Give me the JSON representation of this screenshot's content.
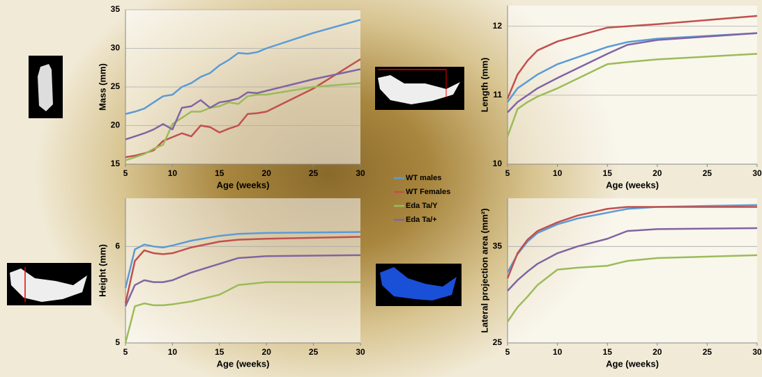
{
  "chart_data": [
    {
      "type": "line",
      "ylabel": "Mass (mm)",
      "xlabel": "Age (weeks)",
      "x": [
        5,
        6,
        7,
        8,
        9,
        10,
        11,
        12,
        13,
        14,
        15,
        16,
        17,
        18,
        19,
        20,
        25,
        30
      ],
      "xlim": [
        5,
        30
      ],
      "xticks": [
        5,
        10,
        15,
        20,
        25,
        30
      ],
      "ylim": [
        15,
        35
      ],
      "yticks": [
        15,
        20,
        25,
        30,
        35
      ],
      "grid": true,
      "series": [
        {
          "name": "WT males",
          "color": "#5b9bd5",
          "values": [
            21.5,
            21.8,
            22.2,
            23,
            23.8,
            24,
            25,
            25.5,
            26.3,
            26.8,
            27.8,
            28.5,
            29.4,
            29.3,
            29.5,
            30,
            32,
            33.7
          ]
        },
        {
          "name": "WT Females",
          "color": "#c0504d",
          "values": [
            15.9,
            16.1,
            16.4,
            16.8,
            18,
            18.5,
            19,
            18.6,
            20,
            19.8,
            19.1,
            19.6,
            20,
            21.5,
            21.6,
            21.8,
            24.8,
            28.6
          ]
        },
        {
          "name": "Eda Ta/Y",
          "color": "#9bbb59",
          "values": [
            15.5,
            15.9,
            16.3,
            17,
            17.5,
            20.2,
            21,
            21.8,
            21.8,
            22.3,
            22.5,
            23,
            22.8,
            23.8,
            24,
            24,
            25,
            25.5
          ]
        },
        {
          "name": "Eda Ta/+",
          "color": "#8064a2",
          "values": [
            18.2,
            18.6,
            19,
            19.5,
            20.2,
            19.5,
            22.3,
            22.5,
            23.3,
            22.3,
            23,
            23.2,
            23.5,
            24.3,
            24.2,
            24.5,
            26,
            27.3
          ]
        }
      ]
    },
    {
      "type": "line",
      "ylabel": "Length  (mm)",
      "xlabel": "Age (weeks)",
      "x": [
        5,
        6,
        7,
        8,
        10,
        15,
        17,
        20,
        30
      ],
      "xlim": [
        5,
        30
      ],
      "xticks": [
        5,
        10,
        15,
        20,
        25,
        30
      ],
      "ylim": [
        10,
        12.3
      ],
      "yticks": [
        10,
        11,
        12
      ],
      "grid": true,
      "series": [
        {
          "color": "#5b9bd5",
          "values": [
            10.9,
            11.1,
            11.2,
            11.3,
            11.45,
            11.7,
            11.77,
            11.82,
            11.9
          ]
        },
        {
          "color": "#c0504d",
          "values": [
            10.95,
            11.3,
            11.5,
            11.65,
            11.78,
            11.98,
            12.0,
            12.03,
            12.15
          ]
        },
        {
          "color": "#9bbb59",
          "values": [
            10.4,
            10.8,
            10.9,
            10.98,
            11.1,
            11.45,
            11.48,
            11.52,
            11.6
          ]
        },
        {
          "color": "#8064a2",
          "values": [
            10.75,
            10.9,
            11.0,
            11.1,
            11.25,
            11.6,
            11.73,
            11.8,
            11.9
          ]
        }
      ]
    },
    {
      "type": "line",
      "ylabel": "Height (mm)",
      "xlabel": "Age (weeks)",
      "x": [
        5,
        6,
        7,
        8,
        9,
        10,
        12,
        15,
        17,
        20,
        30
      ],
      "xlim": [
        5,
        30
      ],
      "xticks": [
        5,
        10,
        15,
        20,
        25,
        30
      ],
      "ylim": [
        5,
        6.5
      ],
      "yticks": [
        5,
        6
      ],
      "grid": true,
      "series": [
        {
          "color": "#5b9bd5",
          "values": [
            5.57,
            5.97,
            6.02,
            6.0,
            5.99,
            6.01,
            6.06,
            6.11,
            6.13,
            6.14,
            6.15
          ]
        },
        {
          "color": "#c0504d",
          "values": [
            5.41,
            5.85,
            5.96,
            5.93,
            5.92,
            5.93,
            5.99,
            6.05,
            6.07,
            6.08,
            6.1
          ]
        },
        {
          "color": "#9bbb59",
          "values": [
            5.0,
            5.38,
            5.41,
            5.39,
            5.39,
            5.4,
            5.43,
            5.5,
            5.6,
            5.63,
            5.63
          ]
        },
        {
          "color": "#8064a2",
          "values": [
            5.38,
            5.6,
            5.65,
            5.63,
            5.63,
            5.65,
            5.73,
            5.82,
            5.88,
            5.9,
            5.91
          ]
        }
      ]
    },
    {
      "type": "line",
      "ylabel": "Lateral projection area  (mm²)",
      "xlabel": "Age (weeks)",
      "x": [
        5,
        6,
        7,
        8,
        10,
        12,
        15,
        17,
        20,
        30
      ],
      "xlim": [
        5,
        30
      ],
      "xticks": [
        5,
        10,
        15,
        20,
        25,
        30
      ],
      "ylim": [
        25,
        40
      ],
      "yticks": [
        25,
        35
      ],
      "grid": true,
      "series": [
        {
          "color": "#5b9bd5",
          "values": [
            32.3,
            34.2,
            35.5,
            36.4,
            37.3,
            37.9,
            38.5,
            38.9,
            39.1,
            39.3
          ]
        },
        {
          "color": "#c0504d",
          "values": [
            31.7,
            34.3,
            35.7,
            36.6,
            37.5,
            38.2,
            38.9,
            39.1,
            39.1,
            39.1
          ]
        },
        {
          "color": "#9bbb59",
          "values": [
            27.2,
            28.7,
            29.8,
            31.0,
            32.6,
            32.8,
            33.0,
            33.5,
            33.8,
            34.1
          ]
        },
        {
          "color": "#8064a2",
          "values": [
            30.4,
            31.5,
            32.4,
            33.2,
            34.3,
            35.0,
            35.8,
            36.6,
            36.8,
            36.9
          ]
        }
      ]
    }
  ]
}
